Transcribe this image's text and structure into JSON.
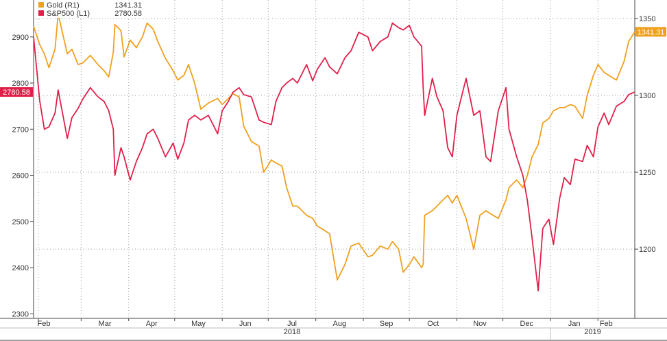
{
  "chart_data": {
    "type": "line",
    "title": "",
    "legend": {
      "placement": "top-left",
      "entries": [
        {
          "label": "Gold (R1)",
          "value": "1341.31",
          "color": "#f0a020"
        },
        {
          "label": "S&P500 (L1)",
          "value": "2780.58",
          "color": "#e0204a"
        }
      ]
    },
    "left_axis": {
      "ticks": [
        "2300",
        "2400",
        "2500",
        "2600",
        "2700",
        "2800",
        "2900"
      ],
      "range": [
        2290,
        2980
      ],
      "last_value_label": "2780.58"
    },
    "right_axis": {
      "ticks": [
        "1200",
        "1250",
        "1300",
        "1350"
      ],
      "range": [
        1155,
        1362
      ],
      "last_value_label": "1341.31"
    },
    "grid": true,
    "x_axis": {
      "month_labels": [
        "Feb",
        "Mar",
        "Apr",
        "May",
        "Jun",
        "Jul",
        "Aug",
        "Sep",
        "Oct",
        "Nov",
        "Dec",
        "Jan",
        "Feb"
      ],
      "year_labels": [
        "2018",
        "2019"
      ],
      "range": [
        "2018-01-29",
        "2019-02-25"
      ]
    },
    "series": [
      {
        "name": "S&P500 (L1)",
        "axis": "left",
        "color": "#e0204a",
        "points": [
          [
            "2018-01-29",
            2900
          ],
          [
            "2018-02-02",
            2762
          ],
          [
            "2018-02-05",
            2700
          ],
          [
            "2018-02-08",
            2705
          ],
          [
            "2018-02-12",
            2735
          ],
          [
            "2018-02-14",
            2785
          ],
          [
            "2018-02-20",
            2680
          ],
          [
            "2018-02-23",
            2725
          ],
          [
            "2018-02-27",
            2745
          ],
          [
            "2018-03-02",
            2765
          ],
          [
            "2018-03-07",
            2790
          ],
          [
            "2018-03-12",
            2770
          ],
          [
            "2018-03-16",
            2760
          ],
          [
            "2018-03-19",
            2740
          ],
          [
            "2018-03-22",
            2700
          ],
          [
            "2018-03-23",
            2600
          ],
          [
            "2018-03-27",
            2660
          ],
          [
            "2018-03-29",
            2640
          ],
          [
            "2018-04-02",
            2590
          ],
          [
            "2018-04-06",
            2630
          ],
          [
            "2018-04-10",
            2660
          ],
          [
            "2018-04-13",
            2690
          ],
          [
            "2018-04-17",
            2700
          ],
          [
            "2018-04-20",
            2680
          ],
          [
            "2018-04-25",
            2640
          ],
          [
            "2018-04-30",
            2670
          ],
          [
            "2018-05-03",
            2635
          ],
          [
            "2018-05-07",
            2670
          ],
          [
            "2018-05-10",
            2720
          ],
          [
            "2018-05-14",
            2730
          ],
          [
            "2018-05-18",
            2720
          ],
          [
            "2018-05-23",
            2730
          ],
          [
            "2018-05-29",
            2690
          ],
          [
            "2018-06-01",
            2740
          ],
          [
            "2018-06-05",
            2760
          ],
          [
            "2018-06-08",
            2780
          ],
          [
            "2018-06-12",
            2790
          ],
          [
            "2018-06-15",
            2775
          ],
          [
            "2018-06-20",
            2770
          ],
          [
            "2018-06-25",
            2720
          ],
          [
            "2018-06-28",
            2715
          ],
          [
            "2018-07-03",
            2710
          ],
          [
            "2018-07-06",
            2760
          ],
          [
            "2018-07-10",
            2790
          ],
          [
            "2018-07-13",
            2800
          ],
          [
            "2018-07-17",
            2810
          ],
          [
            "2018-07-20",
            2800
          ],
          [
            "2018-07-26",
            2840
          ],
          [
            "2018-07-30",
            2805
          ],
          [
            "2018-08-02",
            2830
          ],
          [
            "2018-08-07",
            2855
          ],
          [
            "2018-08-10",
            2835
          ],
          [
            "2018-08-15",
            2820
          ],
          [
            "2018-08-20",
            2855
          ],
          [
            "2018-08-24",
            2870
          ],
          [
            "2018-08-29",
            2910
          ],
          [
            "2018-09-04",
            2900
          ],
          [
            "2018-09-07",
            2870
          ],
          [
            "2018-09-12",
            2890
          ],
          [
            "2018-09-17",
            2900
          ],
          [
            "2018-09-20",
            2930
          ],
          [
            "2018-09-24",
            2920
          ],
          [
            "2018-09-27",
            2915
          ],
          [
            "2018-10-01",
            2925
          ],
          [
            "2018-10-04",
            2900
          ],
          [
            "2018-10-09",
            2880
          ],
          [
            "2018-10-10",
            2790
          ],
          [
            "2018-10-11",
            2730
          ],
          [
            "2018-10-16",
            2810
          ],
          [
            "2018-10-19",
            2770
          ],
          [
            "2018-10-23",
            2740
          ],
          [
            "2018-10-26",
            2660
          ],
          [
            "2018-10-29",
            2640
          ],
          [
            "2018-11-01",
            2730
          ],
          [
            "2018-11-07",
            2810
          ],
          [
            "2018-11-12",
            2730
          ],
          [
            "2018-11-16",
            2740
          ],
          [
            "2018-11-20",
            2640
          ],
          [
            "2018-11-23",
            2630
          ],
          [
            "2018-11-28",
            2740
          ],
          [
            "2018-12-03",
            2790
          ],
          [
            "2018-12-05",
            2700
          ],
          [
            "2018-12-10",
            2640
          ],
          [
            "2018-12-14",
            2600
          ],
          [
            "2018-12-17",
            2545
          ],
          [
            "2018-12-20",
            2465
          ],
          [
            "2018-12-24",
            2350
          ],
          [
            "2018-12-27",
            2485
          ],
          [
            "2018-12-31",
            2505
          ],
          [
            "2019-01-03",
            2450
          ],
          [
            "2019-01-07",
            2550
          ],
          [
            "2019-01-10",
            2595
          ],
          [
            "2019-01-14",
            2580
          ],
          [
            "2019-01-17",
            2635
          ],
          [
            "2019-01-22",
            2630
          ],
          [
            "2019-01-25",
            2665
          ],
          [
            "2019-01-29",
            2640
          ],
          [
            "2019-02-01",
            2705
          ],
          [
            "2019-02-05",
            2735
          ],
          [
            "2019-02-08",
            2710
          ],
          [
            "2019-02-13",
            2750
          ],
          [
            "2019-02-18",
            2760
          ],
          [
            "2019-02-21",
            2775
          ],
          [
            "2019-02-25",
            2780.58
          ]
        ]
      },
      {
        "name": "Gold (R1)",
        "axis": "right",
        "color": "#f0a020",
        "points": [
          [
            "2018-01-29",
            1345
          ],
          [
            "2018-02-02",
            1333
          ],
          [
            "2018-02-05",
            1327
          ],
          [
            "2018-02-08",
            1318
          ],
          [
            "2018-02-12",
            1330
          ],
          [
            "2018-02-14",
            1353
          ],
          [
            "2018-02-20",
            1327
          ],
          [
            "2018-02-23",
            1330
          ],
          [
            "2018-02-27",
            1320
          ],
          [
            "2018-03-02",
            1321
          ],
          [
            "2018-03-07",
            1326
          ],
          [
            "2018-03-12",
            1320
          ],
          [
            "2018-03-16",
            1316
          ],
          [
            "2018-03-19",
            1312
          ],
          [
            "2018-03-22",
            1328
          ],
          [
            "2018-03-23",
            1346
          ],
          [
            "2018-03-27",
            1342
          ],
          [
            "2018-03-29",
            1325
          ],
          [
            "2018-04-02",
            1336
          ],
          [
            "2018-04-06",
            1331
          ],
          [
            "2018-04-10",
            1338
          ],
          [
            "2018-04-13",
            1347
          ],
          [
            "2018-04-17",
            1343
          ],
          [
            "2018-04-20",
            1335
          ],
          [
            "2018-04-25",
            1324
          ],
          [
            "2018-04-30",
            1316
          ],
          [
            "2018-05-03",
            1310
          ],
          [
            "2018-05-07",
            1313
          ],
          [
            "2018-05-10",
            1320
          ],
          [
            "2018-05-14",
            1308
          ],
          [
            "2018-05-18",
            1291
          ],
          [
            "2018-05-23",
            1295
          ],
          [
            "2018-05-29",
            1298
          ],
          [
            "2018-06-01",
            1294
          ],
          [
            "2018-06-05",
            1298
          ],
          [
            "2018-06-08",
            1301
          ],
          [
            "2018-06-12",
            1299
          ],
          [
            "2018-06-15",
            1280
          ],
          [
            "2018-06-20",
            1270
          ],
          [
            "2018-06-25",
            1267
          ],
          [
            "2018-06-28",
            1250
          ],
          [
            "2018-07-03",
            1258
          ],
          [
            "2018-07-06",
            1256
          ],
          [
            "2018-07-10",
            1254
          ],
          [
            "2018-07-13",
            1240
          ],
          [
            "2018-07-17",
            1228
          ],
          [
            "2018-07-20",
            1228
          ],
          [
            "2018-07-26",
            1222
          ],
          [
            "2018-07-30",
            1220
          ],
          [
            "2018-08-02",
            1215
          ],
          [
            "2018-08-07",
            1212
          ],
          [
            "2018-08-10",
            1210
          ],
          [
            "2018-08-15",
            1180
          ],
          [
            "2018-08-20",
            1190
          ],
          [
            "2018-08-24",
            1202
          ],
          [
            "2018-08-29",
            1204
          ],
          [
            "2018-09-04",
            1195
          ],
          [
            "2018-09-07",
            1196
          ],
          [
            "2018-09-12",
            1202
          ],
          [
            "2018-09-17",
            1200
          ],
          [
            "2018-09-20",
            1205
          ],
          [
            "2018-09-24",
            1200
          ],
          [
            "2018-09-27",
            1185
          ],
          [
            "2018-10-01",
            1190
          ],
          [
            "2018-10-04",
            1195
          ],
          [
            "2018-10-09",
            1188
          ],
          [
            "2018-10-10",
            1190
          ],
          [
            "2018-10-11",
            1222
          ],
          [
            "2018-10-16",
            1225
          ],
          [
            "2018-10-19",
            1228
          ],
          [
            "2018-10-23",
            1232
          ],
          [
            "2018-10-26",
            1235
          ],
          [
            "2018-10-29",
            1230
          ],
          [
            "2018-11-01",
            1235
          ],
          [
            "2018-11-07",
            1220
          ],
          [
            "2018-11-12",
            1200
          ],
          [
            "2018-11-16",
            1222
          ],
          [
            "2018-11-20",
            1225
          ],
          [
            "2018-11-23",
            1223
          ],
          [
            "2018-11-28",
            1220
          ],
          [
            "2018-12-03",
            1232
          ],
          [
            "2018-12-05",
            1240
          ],
          [
            "2018-12-10",
            1245
          ],
          [
            "2018-12-14",
            1240
          ],
          [
            "2018-12-17",
            1248
          ],
          [
            "2018-12-20",
            1260
          ],
          [
            "2018-12-24",
            1268
          ],
          [
            "2018-12-27",
            1282
          ],
          [
            "2018-12-31",
            1285
          ],
          [
            "2019-01-03",
            1290
          ],
          [
            "2019-01-07",
            1292
          ],
          [
            "2019-01-10",
            1292
          ],
          [
            "2019-01-14",
            1294
          ],
          [
            "2019-01-17",
            1293
          ],
          [
            "2019-01-22",
            1285
          ],
          [
            "2019-01-25",
            1300
          ],
          [
            "2019-01-29",
            1313
          ],
          [
            "2019-02-01",
            1320
          ],
          [
            "2019-02-05",
            1315
          ],
          [
            "2019-02-08",
            1313
          ],
          [
            "2019-02-13",
            1310
          ],
          [
            "2019-02-18",
            1322
          ],
          [
            "2019-02-21",
            1335
          ],
          [
            "2019-02-25",
            1341.31
          ]
        ]
      }
    ]
  }
}
